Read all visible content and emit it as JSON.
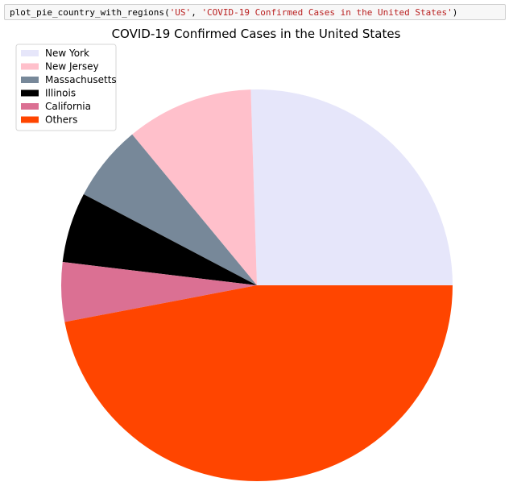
{
  "code_cell": {
    "function_name": "plot_pie_country_with_regions",
    "open_paren": "(",
    "arg_country": "'US'",
    "separator": ", ",
    "arg_title": "'COVID-19 Confirmed Cases in the United States'",
    "close_paren": ")"
  },
  "chart_data": {
    "type": "pie",
    "title": "COVID-19 Confirmed Cases in the United States",
    "legend_position": "top-left",
    "start_angle_degrees": 0,
    "direction": "counterclockwise",
    "slices": [
      {
        "label": "New York",
        "value": 25.5,
        "color": "#e6e6fa"
      },
      {
        "label": "New Jersey",
        "value": 10.5,
        "color": "#ffc0cb"
      },
      {
        "label": "Massachusetts",
        "value": 6.3,
        "color": "#778899"
      },
      {
        "label": "Illinois",
        "value": 5.8,
        "color": "#000000"
      },
      {
        "label": "California",
        "value": 4.9,
        "color": "#db7093"
      },
      {
        "label": "Others",
        "value": 47.0,
        "color": "#ff4500"
      }
    ]
  }
}
